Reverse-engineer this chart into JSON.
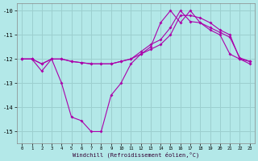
{
  "xlabel": "Windchill (Refroidissement éolien,°C)",
  "background_color": "#b3e8e8",
  "grid_color": "#9ccfcf",
  "line_color": "#aa00aa",
  "x_min": -0.5,
  "x_max": 23.5,
  "y_min": -15.5,
  "y_max": -9.7,
  "yticks": [
    -10,
    -11,
    -12,
    -13,
    -14,
    -15
  ],
  "xticks": [
    0,
    1,
    2,
    3,
    4,
    5,
    6,
    7,
    8,
    9,
    10,
    11,
    12,
    13,
    14,
    15,
    16,
    17,
    18,
    19,
    20,
    21,
    22,
    23
  ],
  "line1_x": [
    0,
    1,
    2,
    3,
    4,
    5,
    6,
    7,
    8,
    9,
    10,
    11,
    12,
    13,
    14,
    15,
    16,
    17,
    18,
    19,
    20,
    21,
    22,
    23
  ],
  "line1_y": [
    -12.0,
    -12.0,
    -12.5,
    -12.0,
    -13.0,
    -14.4,
    -14.55,
    -15.0,
    -15.0,
    -13.5,
    -13.0,
    -12.2,
    -11.8,
    -11.5,
    -10.5,
    -10.0,
    -10.5,
    -10.0,
    -10.5,
    -10.8,
    -11.0,
    -11.8,
    -12.0,
    -12.2
  ],
  "line2_x": [
    0,
    1,
    2,
    3,
    4,
    5,
    6,
    7,
    8,
    9,
    10,
    11,
    12,
    13,
    14,
    15,
    16,
    17,
    18,
    19,
    20,
    21,
    22,
    23
  ],
  "line2_y": [
    -12.0,
    -12.0,
    -12.2,
    -12.0,
    -12.0,
    -12.1,
    -12.15,
    -12.2,
    -12.2,
    -12.2,
    -12.1,
    -12.0,
    -11.8,
    -11.6,
    -11.4,
    -11.0,
    -10.2,
    -10.2,
    -10.3,
    -10.5,
    -10.8,
    -11.0,
    -12.0,
    -12.1
  ],
  "line3_x": [
    0,
    1,
    2,
    3,
    4,
    5,
    6,
    7,
    8,
    9,
    10,
    11,
    12,
    13,
    14,
    15,
    16,
    17,
    18,
    19,
    20,
    21,
    22,
    23
  ],
  "line3_y": [
    -12.0,
    -12.0,
    -12.2,
    -12.0,
    -12.0,
    -12.1,
    -12.15,
    -12.2,
    -12.2,
    -12.2,
    -12.1,
    -12.0,
    -11.7,
    -11.4,
    -11.2,
    -10.7,
    -10.0,
    -10.45,
    -10.5,
    -10.7,
    -10.9,
    -11.1,
    -11.95,
    -12.1
  ]
}
